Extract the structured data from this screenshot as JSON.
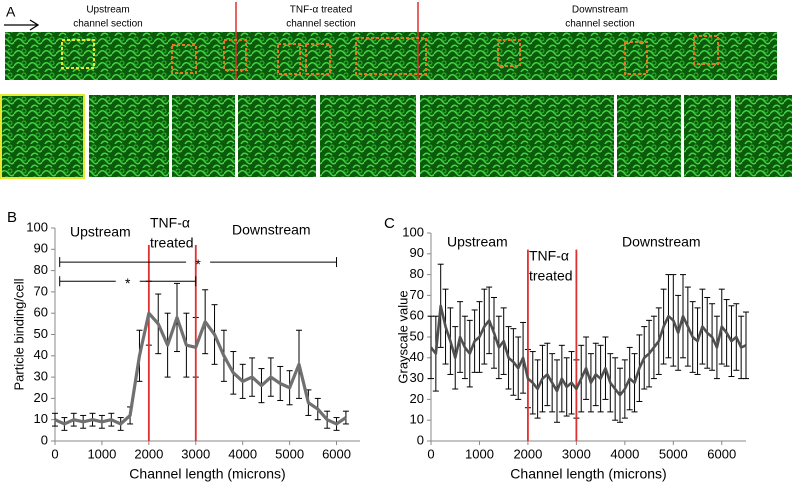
{
  "panel_a": {
    "label": "A",
    "sections": [
      [
        "Upstream",
        "channel section"
      ],
      [
        "TNF-α treated",
        "channel section"
      ],
      [
        "Downstream",
        "channel section"
      ]
    ]
  },
  "chart_data": [
    {
      "type": "line",
      "panel_label": "B",
      "ylabel": "Particle binding/cell",
      "xlabel": "Channel length (microns)",
      "x": [
        0,
        200,
        400,
        600,
        800,
        1000,
        1200,
        1400,
        1600,
        1800,
        2000,
        2200,
        2400,
        2600,
        2800,
        3000,
        3200,
        3400,
        3600,
        3800,
        4000,
        4200,
        4400,
        4600,
        4800,
        5000,
        5200,
        5400,
        5600,
        5800,
        6000,
        6200
      ],
      "values": [
        10,
        8,
        10,
        9,
        10,
        9,
        10,
        8,
        12,
        40,
        60,
        55,
        45,
        58,
        45,
        44,
        56,
        50,
        40,
        32,
        28,
        30,
        26,
        30,
        27,
        25,
        36,
        18,
        15,
        10,
        8,
        11
      ],
      "errors": [
        3,
        3,
        3,
        3,
        3,
        3,
        3,
        3,
        4,
        12,
        15,
        14,
        15,
        16,
        15,
        14,
        15,
        14,
        12,
        10,
        8,
        9,
        8,
        9,
        8,
        8,
        16,
        6,
        5,
        4,
        3,
        3
      ],
      "color": "#707070",
      "error_color": "#000000",
      "xlim": [
        0,
        6500
      ],
      "ylim": [
        0,
        100
      ],
      "xticks": [
        0,
        1000,
        2000,
        3000,
        4000,
        5000,
        6000
      ],
      "yticks": [
        0,
        10,
        20,
        30,
        40,
        50,
        60,
        70,
        80,
        90,
        100
      ],
      "vlines": [
        2000,
        3000
      ],
      "vline_color": "#e03030",
      "annotations": [
        "Upstream",
        "TNF-α",
        "treated",
        "Downstream"
      ],
      "brackets": [
        {
          "x": [
            100,
            6000
          ],
          "y": 84,
          "label": "*"
        },
        {
          "x": [
            100,
            3000
          ],
          "y": 75,
          "label": "*"
        }
      ]
    },
    {
      "type": "line",
      "panel_label": "C",
      "ylabel": "Grayscale value",
      "xlabel": "Channel length (microns)",
      "x": [
        0,
        100,
        200,
        300,
        400,
        500,
        600,
        700,
        800,
        900,
        1000,
        1100,
        1200,
        1300,
        1400,
        1500,
        1600,
        1700,
        1800,
        1900,
        2000,
        2100,
        2200,
        2300,
        2400,
        2500,
        2600,
        2700,
        2800,
        2900,
        3000,
        3100,
        3200,
        3300,
        3400,
        3500,
        3600,
        3700,
        3800,
        3900,
        4000,
        4100,
        4200,
        4300,
        4400,
        4500,
        4600,
        4700,
        4800,
        4900,
        5000,
        5100,
        5200,
        5300,
        5400,
        5500,
        5600,
        5700,
        5800,
        5900,
        6000,
        6100,
        6200,
        6300,
        6400,
        6500
      ],
      "values": [
        45,
        42,
        65,
        55,
        48,
        40,
        50,
        45,
        42,
        48,
        50,
        55,
        58,
        52,
        45,
        48,
        40,
        38,
        35,
        40,
        30,
        28,
        25,
        30,
        32,
        28,
        24,
        30,
        26,
        28,
        25,
        30,
        35,
        28,
        32,
        30,
        35,
        28,
        25,
        22,
        25,
        30,
        28,
        35,
        40,
        42,
        45,
        48,
        55,
        60,
        58,
        52,
        60,
        55,
        50,
        48,
        55,
        52,
        50,
        45,
        55,
        52,
        48,
        50,
        45,
        46
      ],
      "errors": [
        15,
        18,
        20,
        18,
        16,
        15,
        17,
        15,
        16,
        15,
        17,
        18,
        16,
        17,
        15,
        16,
        15,
        16,
        15,
        17,
        14,
        15,
        14,
        16,
        15,
        14,
        15,
        16,
        14,
        15,
        14,
        16,
        15,
        14,
        15,
        16,
        15,
        14,
        15,
        13,
        14,
        15,
        14,
        16,
        15,
        16,
        15,
        16,
        18,
        20,
        22,
        18,
        20,
        19,
        17,
        16,
        18,
        17,
        16,
        15,
        18,
        16,
        17,
        16,
        15,
        16
      ],
      "color": "#505050",
      "error_color": "#000000",
      "xlim": [
        0,
        6500
      ],
      "ylim": [
        0,
        100
      ],
      "xticks": [
        0,
        1000,
        2000,
        3000,
        4000,
        5000,
        6000
      ],
      "yticks": [
        0,
        10,
        20,
        30,
        40,
        50,
        60,
        70,
        80,
        90,
        100
      ],
      "vlines": [
        2000,
        3000
      ],
      "vline_color": "#e03030",
      "annotations": [
        "Upstream",
        "TNF-α",
        "treated",
        "Downstream"
      ]
    }
  ]
}
